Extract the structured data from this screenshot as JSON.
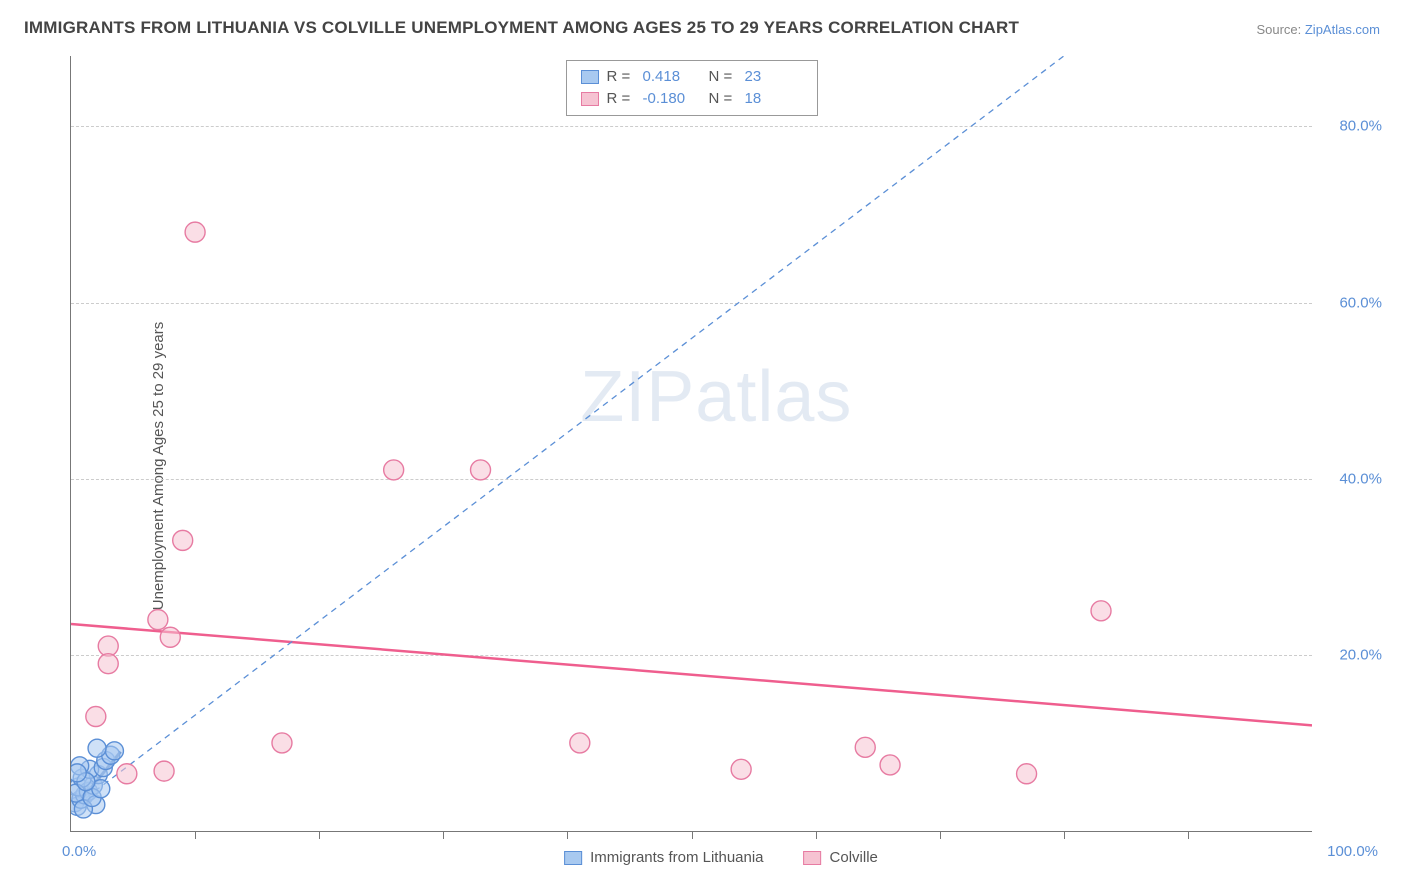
{
  "title": "IMMIGRANTS FROM LITHUANIA VS COLVILLE UNEMPLOYMENT AMONG AGES 25 TO 29 YEARS CORRELATION CHART",
  "source_prefix": "Source: ",
  "source_link": "ZipAtlas.com",
  "ylabel": "Unemployment Among Ages 25 to 29 years",
  "watermark_a": "ZIP",
  "watermark_b": "atlas",
  "chart": {
    "type": "scatter",
    "xlim": [
      0,
      100
    ],
    "ylim": [
      0,
      88
    ],
    "xticks_minor": [
      10,
      20,
      30,
      40,
      50,
      60,
      70,
      80,
      90
    ],
    "yticks": [
      20,
      40,
      60,
      80
    ],
    "ytick_labels": [
      "20.0%",
      "40.0%",
      "60.0%",
      "80.0%"
    ],
    "xmin_label": "0.0%",
    "xmax_label": "100.0%",
    "grid_color": "#cccccc",
    "axis_color": "#777777",
    "series": [
      {
        "name": "Immigrants from Lithuania",
        "fill": "#a8c9f0",
        "stroke": "#5b8fd6",
        "fill_opacity": 0.55,
        "marker_radius": 9,
        "R": "0.418",
        "N": "23",
        "trend": {
          "x1": 0.5,
          "y1": 3,
          "x2": 80,
          "y2": 88,
          "dash": "6,5",
          "width": 1.3,
          "color": "#5b8fd6"
        },
        "solid_segment": {
          "x1": 0.5,
          "y1": 3,
          "x2": 4,
          "y2": 9,
          "width": 3,
          "color": "#3a6bb5"
        },
        "points": [
          {
            "x": 0.3,
            "y": 3.2
          },
          {
            "x": 0.5,
            "y": 2.8
          },
          {
            "x": 0.8,
            "y": 3.6
          },
          {
            "x": 1.1,
            "y": 4.1
          },
          {
            "x": 0.6,
            "y": 5.0
          },
          {
            "x": 1.4,
            "y": 4.5
          },
          {
            "x": 1.8,
            "y": 5.2
          },
          {
            "x": 0.9,
            "y": 6.0
          },
          {
            "x": 2.2,
            "y": 6.4
          },
          {
            "x": 1.5,
            "y": 7.0
          },
          {
            "x": 2.6,
            "y": 7.2
          },
          {
            "x": 2.0,
            "y": 3.0
          },
          {
            "x": 0.4,
            "y": 4.3
          },
          {
            "x": 1.0,
            "y": 2.5
          },
          {
            "x": 2.8,
            "y": 8.0
          },
          {
            "x": 3.2,
            "y": 8.6
          },
          {
            "x": 1.7,
            "y": 3.8
          },
          {
            "x": 0.7,
            "y": 7.4
          },
          {
            "x": 2.4,
            "y": 4.8
          },
          {
            "x": 3.5,
            "y": 9.1
          },
          {
            "x": 1.2,
            "y": 5.6
          },
          {
            "x": 0.5,
            "y": 6.6
          },
          {
            "x": 2.1,
            "y": 9.4
          }
        ]
      },
      {
        "name": "Colville",
        "fill": "#f6c3d2",
        "stroke": "#e77ba2",
        "fill_opacity": 0.55,
        "marker_radius": 10,
        "R": "-0.180",
        "N": "18",
        "trend": {
          "x1": 0,
          "y1": 23.5,
          "x2": 100,
          "y2": 12,
          "dash": "",
          "width": 2.5,
          "color": "#ef5e8e"
        },
        "points": [
          {
            "x": 10,
            "y": 68
          },
          {
            "x": 26,
            "y": 41
          },
          {
            "x": 33,
            "y": 41
          },
          {
            "x": 9,
            "y": 33
          },
          {
            "x": 7,
            "y": 24
          },
          {
            "x": 3,
            "y": 21
          },
          {
            "x": 8,
            "y": 22
          },
          {
            "x": 3,
            "y": 19
          },
          {
            "x": 2,
            "y": 13
          },
          {
            "x": 17,
            "y": 10
          },
          {
            "x": 41,
            "y": 10
          },
          {
            "x": 54,
            "y": 7
          },
          {
            "x": 64,
            "y": 9.5
          },
          {
            "x": 66,
            "y": 7.5
          },
          {
            "x": 77,
            "y": 6.5
          },
          {
            "x": 83,
            "y": 25
          },
          {
            "x": 4.5,
            "y": 6.5
          },
          {
            "x": 7.5,
            "y": 6.8
          }
        ]
      }
    ]
  },
  "legend_top": {
    "labels": {
      "R": "R =",
      "N": "N ="
    }
  },
  "legend_bottom": {
    "items": [
      "Immigrants from Lithuania",
      "Colville"
    ]
  }
}
